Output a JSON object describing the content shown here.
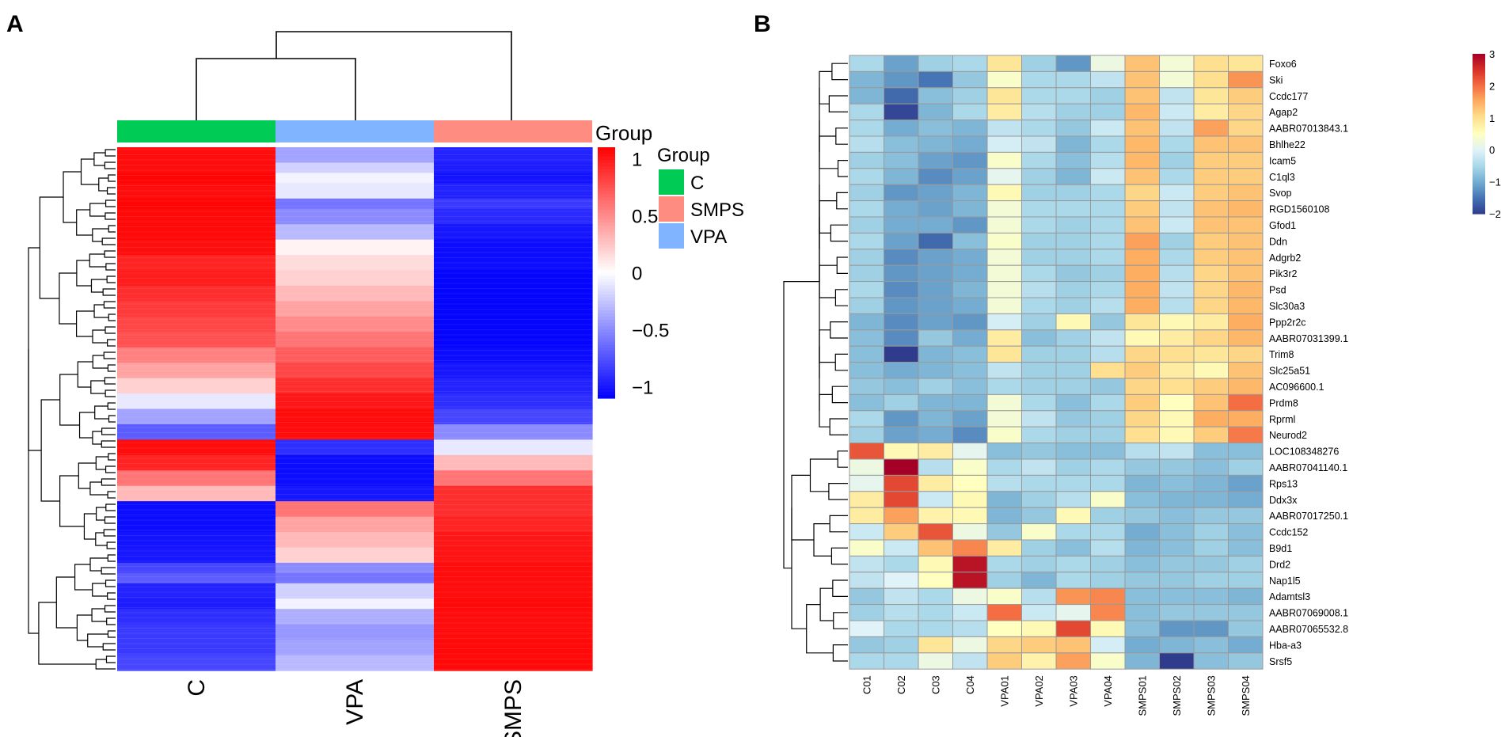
{
  "panels": {
    "a_label": "A",
    "b_label": "B"
  },
  "colors": {
    "group_c": "#00cc55",
    "group_vpa": "#80b4ff",
    "group_smps": "#ff8c80",
    "panel_a_high": "#ff0000",
    "panel_a_mid": "#ffffff",
    "panel_a_low": "#0000ff",
    "panel_b_scale": [
      "#2f3c8e",
      "#4575b4",
      "#74add1",
      "#abd9e9",
      "#e0f3f8",
      "#ffffbf",
      "#fee090",
      "#fdae61",
      "#f46d43",
      "#d73027",
      "#a50026"
    ]
  },
  "chart_data": [
    {
      "type": "heatmap",
      "panel": "A",
      "title": "",
      "columns": [
        "C",
        "VPA",
        "SMPS"
      ],
      "annotation_title": "Group",
      "legend_title": "Group",
      "legend_entries": [
        {
          "label": "C",
          "color": "#00cc55"
        },
        {
          "label": "SMPS",
          "color": "#ff8c80"
        },
        {
          "label": "VPA",
          "color": "#80b4ff"
        }
      ],
      "colorbar": {
        "range": [
          -1.1,
          1.1
        ],
        "tick_values": [
          1,
          0.5,
          0,
          -0.5,
          -1
        ],
        "tick_labels": [
          "1",
          "0.5",
          "0",
          "−0.5",
          "−1"
        ]
      },
      "rows": [
        [
          1.05,
          -0.4,
          -0.95
        ],
        [
          1.05,
          -0.2,
          -0.98
        ],
        [
          1.08,
          -0.05,
          -1.02
        ],
        [
          1.05,
          -0.1,
          -0.95
        ],
        [
          1.08,
          -0.6,
          -0.85
        ],
        [
          1.06,
          -0.5,
          -0.92
        ],
        [
          1.06,
          -0.3,
          -1.0
        ],
        [
          1.04,
          0.05,
          -1.05
        ],
        [
          0.95,
          0.15,
          -1.05
        ],
        [
          0.98,
          0.2,
          -1.08
        ],
        [
          0.9,
          0.3,
          -1.08
        ],
        [
          0.85,
          0.4,
          -1.08
        ],
        [
          0.8,
          0.5,
          -1.08
        ],
        [
          0.75,
          0.6,
          -1.08
        ],
        [
          0.55,
          0.7,
          -1.05
        ],
        [
          0.4,
          0.8,
          -1.0
        ],
        [
          0.2,
          0.9,
          -0.95
        ],
        [
          -0.1,
          1.0,
          -0.9
        ],
        [
          -0.4,
          1.05,
          -0.8
        ],
        [
          -0.7,
          1.05,
          -0.5
        ],
        [
          1.05,
          -0.9,
          -0.1
        ],
        [
          0.95,
          -1.05,
          0.3
        ],
        [
          0.6,
          -1.05,
          0.6
        ],
        [
          0.3,
          -1.0,
          0.9
        ],
        [
          -1.05,
          0.6,
          0.9
        ],
        [
          -1.05,
          0.4,
          0.95
        ],
        [
          -1.02,
          0.3,
          1.0
        ],
        [
          -1.0,
          0.2,
          1.02
        ],
        [
          -0.8,
          -0.5,
          1.05
        ],
        [
          -0.7,
          -0.6,
          1.05
        ],
        [
          -0.95,
          -0.2,
          1.05
        ],
        [
          -0.98,
          -0.05,
          1.06
        ],
        [
          -0.9,
          -0.35,
          1.05
        ],
        [
          -0.85,
          -0.45,
          1.05
        ],
        [
          -0.85,
          -0.4,
          1.06
        ],
        [
          -0.8,
          -0.3,
          1.06
        ]
      ],
      "row_weights": [
        3,
        2,
        2,
        3,
        2,
        3,
        3,
        3,
        3,
        3,
        3,
        3,
        3,
        3,
        3,
        3,
        3,
        3,
        3,
        3,
        3,
        3,
        3,
        3,
        3,
        3,
        3,
        3,
        2,
        2,
        3,
        2,
        3,
        3,
        3,
        3
      ]
    },
    {
      "type": "heatmap",
      "panel": "B",
      "title": "",
      "columns": [
        "C01",
        "C02",
        "C03",
        "C04",
        "VPA01",
        "VPA02",
        "VPA03",
        "VPA04",
        "SMPS01",
        "SMPS02",
        "SMPS03",
        "SMPS04"
      ],
      "rows": [
        "Foxo6",
        "Ski",
        "Ccdc177",
        "Agap2",
        "AABR07013843.1",
        "Bhlhe22",
        "Icam5",
        "C1ql3",
        "Svop",
        "RGD1560108",
        "Gfod1",
        "Ddn",
        "Adgrb2",
        "Pik3r2",
        "Psd",
        "Slc30a3",
        "Ppp2r2c",
        "AABR07031399.1",
        "Trim8",
        "Slc25a51",
        "AC096600.1",
        "Prdm8",
        "Rprml",
        "Neurod2",
        "LOC108348276",
        "AABR07041140.1",
        "Rps13",
        "Ddx3x",
        "AABR07017250.1",
        "Ccdc152",
        "B9d1",
        "Drd2",
        "Nap1l5",
        "Adamtsl3",
        "AABR07069008.1",
        "AABR07065532.8",
        "Hba-a3",
        "Srsf5"
      ],
      "values": [
        [
          -0.5,
          -1.1,
          -0.6,
          -0.5,
          0.9,
          -0.6,
          -1.2,
          0.2,
          1.3,
          0.3,
          1.0,
          0.9
        ],
        [
          -0.9,
          -1.2,
          -1.5,
          -0.7,
          0.4,
          -0.5,
          -0.5,
          -0.3,
          1.3,
          0.3,
          1.0,
          1.7
        ],
        [
          -0.9,
          -1.6,
          -0.8,
          -0.6,
          0.9,
          -0.5,
          -0.5,
          -0.6,
          1.3,
          -0.3,
          0.9,
          1.2
        ],
        [
          -0.5,
          -1.9,
          -0.9,
          -0.5,
          0.8,
          -0.4,
          -0.6,
          -0.6,
          1.4,
          -0.2,
          0.8,
          1.1
        ],
        [
          -0.5,
          -1.0,
          -0.8,
          -0.9,
          -0.3,
          -0.5,
          -0.7,
          -0.2,
          1.3,
          -0.3,
          1.6,
          1.1
        ],
        [
          -0.4,
          -0.8,
          -0.9,
          -1.0,
          -0.1,
          -0.3,
          -0.9,
          -0.5,
          1.4,
          -0.5,
          1.3,
          1.3
        ],
        [
          -0.6,
          -0.8,
          -1.1,
          -1.2,
          0.4,
          -0.5,
          -0.8,
          -0.4,
          1.4,
          -0.6,
          1.2,
          1.2
        ],
        [
          -0.5,
          -0.9,
          -1.3,
          -1.1,
          0.1,
          -0.6,
          -0.9,
          -0.2,
          1.3,
          -0.5,
          1.2,
          1.2
        ],
        [
          -0.6,
          -1.2,
          -1.1,
          -0.9,
          0.6,
          -0.6,
          -0.6,
          -0.5,
          1.1,
          -0.2,
          1.2,
          1.3
        ],
        [
          -0.5,
          -1.0,
          -1.1,
          -0.9,
          0.3,
          -0.5,
          -0.5,
          -0.5,
          1.2,
          -0.3,
          1.3,
          1.4
        ],
        [
          -0.6,
          -1.0,
          -1.0,
          -1.2,
          0.3,
          -0.5,
          -0.6,
          -0.5,
          1.3,
          -0.2,
          1.3,
          1.3
        ],
        [
          -0.5,
          -1.1,
          -1.6,
          -0.8,
          0.4,
          -0.6,
          -0.6,
          -0.5,
          1.6,
          -0.6,
          1.2,
          1.3
        ],
        [
          -0.6,
          -1.3,
          -1.1,
          -1.0,
          0.3,
          -0.6,
          -0.6,
          -0.5,
          1.5,
          -0.5,
          1.2,
          1.3
        ],
        [
          -0.6,
          -1.2,
          -1.1,
          -1.0,
          0.3,
          -0.5,
          -0.7,
          -0.6,
          1.5,
          -0.4,
          1.1,
          1.3
        ],
        [
          -0.5,
          -1.3,
          -1.1,
          -0.9,
          0.3,
          -0.4,
          -0.6,
          -0.5,
          1.5,
          -0.3,
          1.1,
          1.4
        ],
        [
          -0.6,
          -1.2,
          -1.1,
          -1.0,
          0.3,
          -0.5,
          -0.6,
          -0.4,
          1.5,
          -0.4,
          1.1,
          1.4
        ],
        [
          -0.9,
          -1.3,
          -1.1,
          -1.2,
          -0.1,
          -0.6,
          0.6,
          -0.7,
          0.9,
          0.6,
          0.8,
          1.5
        ],
        [
          -0.8,
          -1.3,
          -0.7,
          -1.0,
          0.8,
          -0.8,
          -0.6,
          -0.3,
          0.6,
          0.8,
          1.1,
          1.4
        ],
        [
          -0.8,
          -2.0,
          -0.9,
          -0.8,
          0.9,
          -0.6,
          -0.6,
          -0.4,
          1.1,
          1.0,
          0.9,
          1.1
        ],
        [
          -0.8,
          -1.0,
          -0.9,
          -0.8,
          -0.3,
          -0.6,
          -0.6,
          1.0,
          1.2,
          0.8,
          0.6,
          1.3
        ],
        [
          -0.7,
          -0.8,
          -0.6,
          -0.8,
          -0.5,
          -0.6,
          -0.6,
          -0.7,
          1.1,
          1.0,
          1.2,
          1.4
        ],
        [
          -0.8,
          -0.6,
          -0.9,
          -0.9,
          0.3,
          -0.5,
          -0.8,
          -0.5,
          1.2,
          0.5,
          1.3,
          2.0
        ],
        [
          -0.5,
          -1.2,
          -0.9,
          -1.1,
          0.3,
          -0.3,
          -0.7,
          -0.6,
          1.1,
          0.6,
          1.5,
          1.5
        ],
        [
          -0.6,
          -1.1,
          -1.0,
          -1.3,
          0.4,
          -0.5,
          -0.6,
          -0.6,
          1.0,
          0.6,
          1.2,
          1.9
        ],
        [
          2.2,
          0.6,
          0.8,
          0.1,
          -0.8,
          -0.7,
          -0.8,
          -0.8,
          -0.4,
          -0.3,
          -0.8,
          -0.8
        ],
        [
          0.2,
          3.0,
          -0.4,
          0.4,
          -0.5,
          -0.3,
          -0.6,
          -0.5,
          -0.7,
          -0.7,
          -0.8,
          -0.6
        ],
        [
          0.1,
          2.3,
          0.8,
          0.5,
          -0.4,
          -0.5,
          -0.5,
          -0.5,
          -0.9,
          -0.8,
          -0.9,
          -1.1
        ],
        [
          0.8,
          2.3,
          -0.2,
          0.6,
          -0.9,
          -0.6,
          -0.4,
          0.4,
          -0.8,
          -0.9,
          -0.9,
          -1.0
        ],
        [
          0.8,
          1.6,
          0.7,
          0.6,
          -0.9,
          -0.7,
          0.6,
          -0.6,
          -0.7,
          -0.8,
          -0.7,
          -0.7
        ],
        [
          -0.2,
          1.2,
          2.2,
          0.2,
          -0.7,
          0.4,
          -0.5,
          -0.5,
          -1.0,
          -0.8,
          -0.6,
          -0.8
        ],
        [
          0.4,
          -0.2,
          1.3,
          1.8,
          0.8,
          -0.6,
          -0.8,
          -0.4,
          -0.9,
          -0.8,
          -0.6,
          -0.8
        ],
        [
          -0.3,
          -0.5,
          0.6,
          2.8,
          -0.5,
          -0.6,
          -0.5,
          -0.6,
          -0.8,
          -0.7,
          -0.7,
          -0.6
        ],
        [
          -0.3,
          0.0,
          0.5,
          2.8,
          -0.6,
          -0.9,
          -0.5,
          -0.6,
          -0.7,
          -0.7,
          -0.6,
          -0.6
        ],
        [
          -0.7,
          -0.3,
          -0.5,
          0.2,
          0.4,
          -0.4,
          1.7,
          1.8,
          -0.8,
          -0.8,
          -0.8,
          -0.9
        ],
        [
          -0.6,
          -0.4,
          -0.5,
          -0.2,
          2.0,
          -0.2,
          0.1,
          1.8,
          -0.8,
          -0.7,
          -0.7,
          -0.7
        ],
        [
          0.0,
          -0.5,
          -0.5,
          -0.4,
          0.5,
          0.6,
          2.3,
          0.6,
          -0.8,
          -1.2,
          -1.2,
          -0.7
        ],
        [
          -0.7,
          -0.6,
          0.9,
          0.2,
          1.1,
          1.2,
          1.3,
          -0.1,
          -1.0,
          -0.9,
          -0.8,
          -1.0
        ],
        [
          -0.5,
          -0.5,
          0.2,
          -0.3,
          1.2,
          0.7,
          1.6,
          0.4,
          -0.9,
          -2.0,
          -0.8,
          -0.7
        ]
      ],
      "colorbar": {
        "range": [
          -2,
          3
        ],
        "tick_values": [
          3,
          2,
          1,
          0,
          -1,
          -2
        ],
        "tick_labels": [
          "3",
          "2",
          "1",
          "0",
          "−1",
          "−2"
        ]
      }
    }
  ]
}
